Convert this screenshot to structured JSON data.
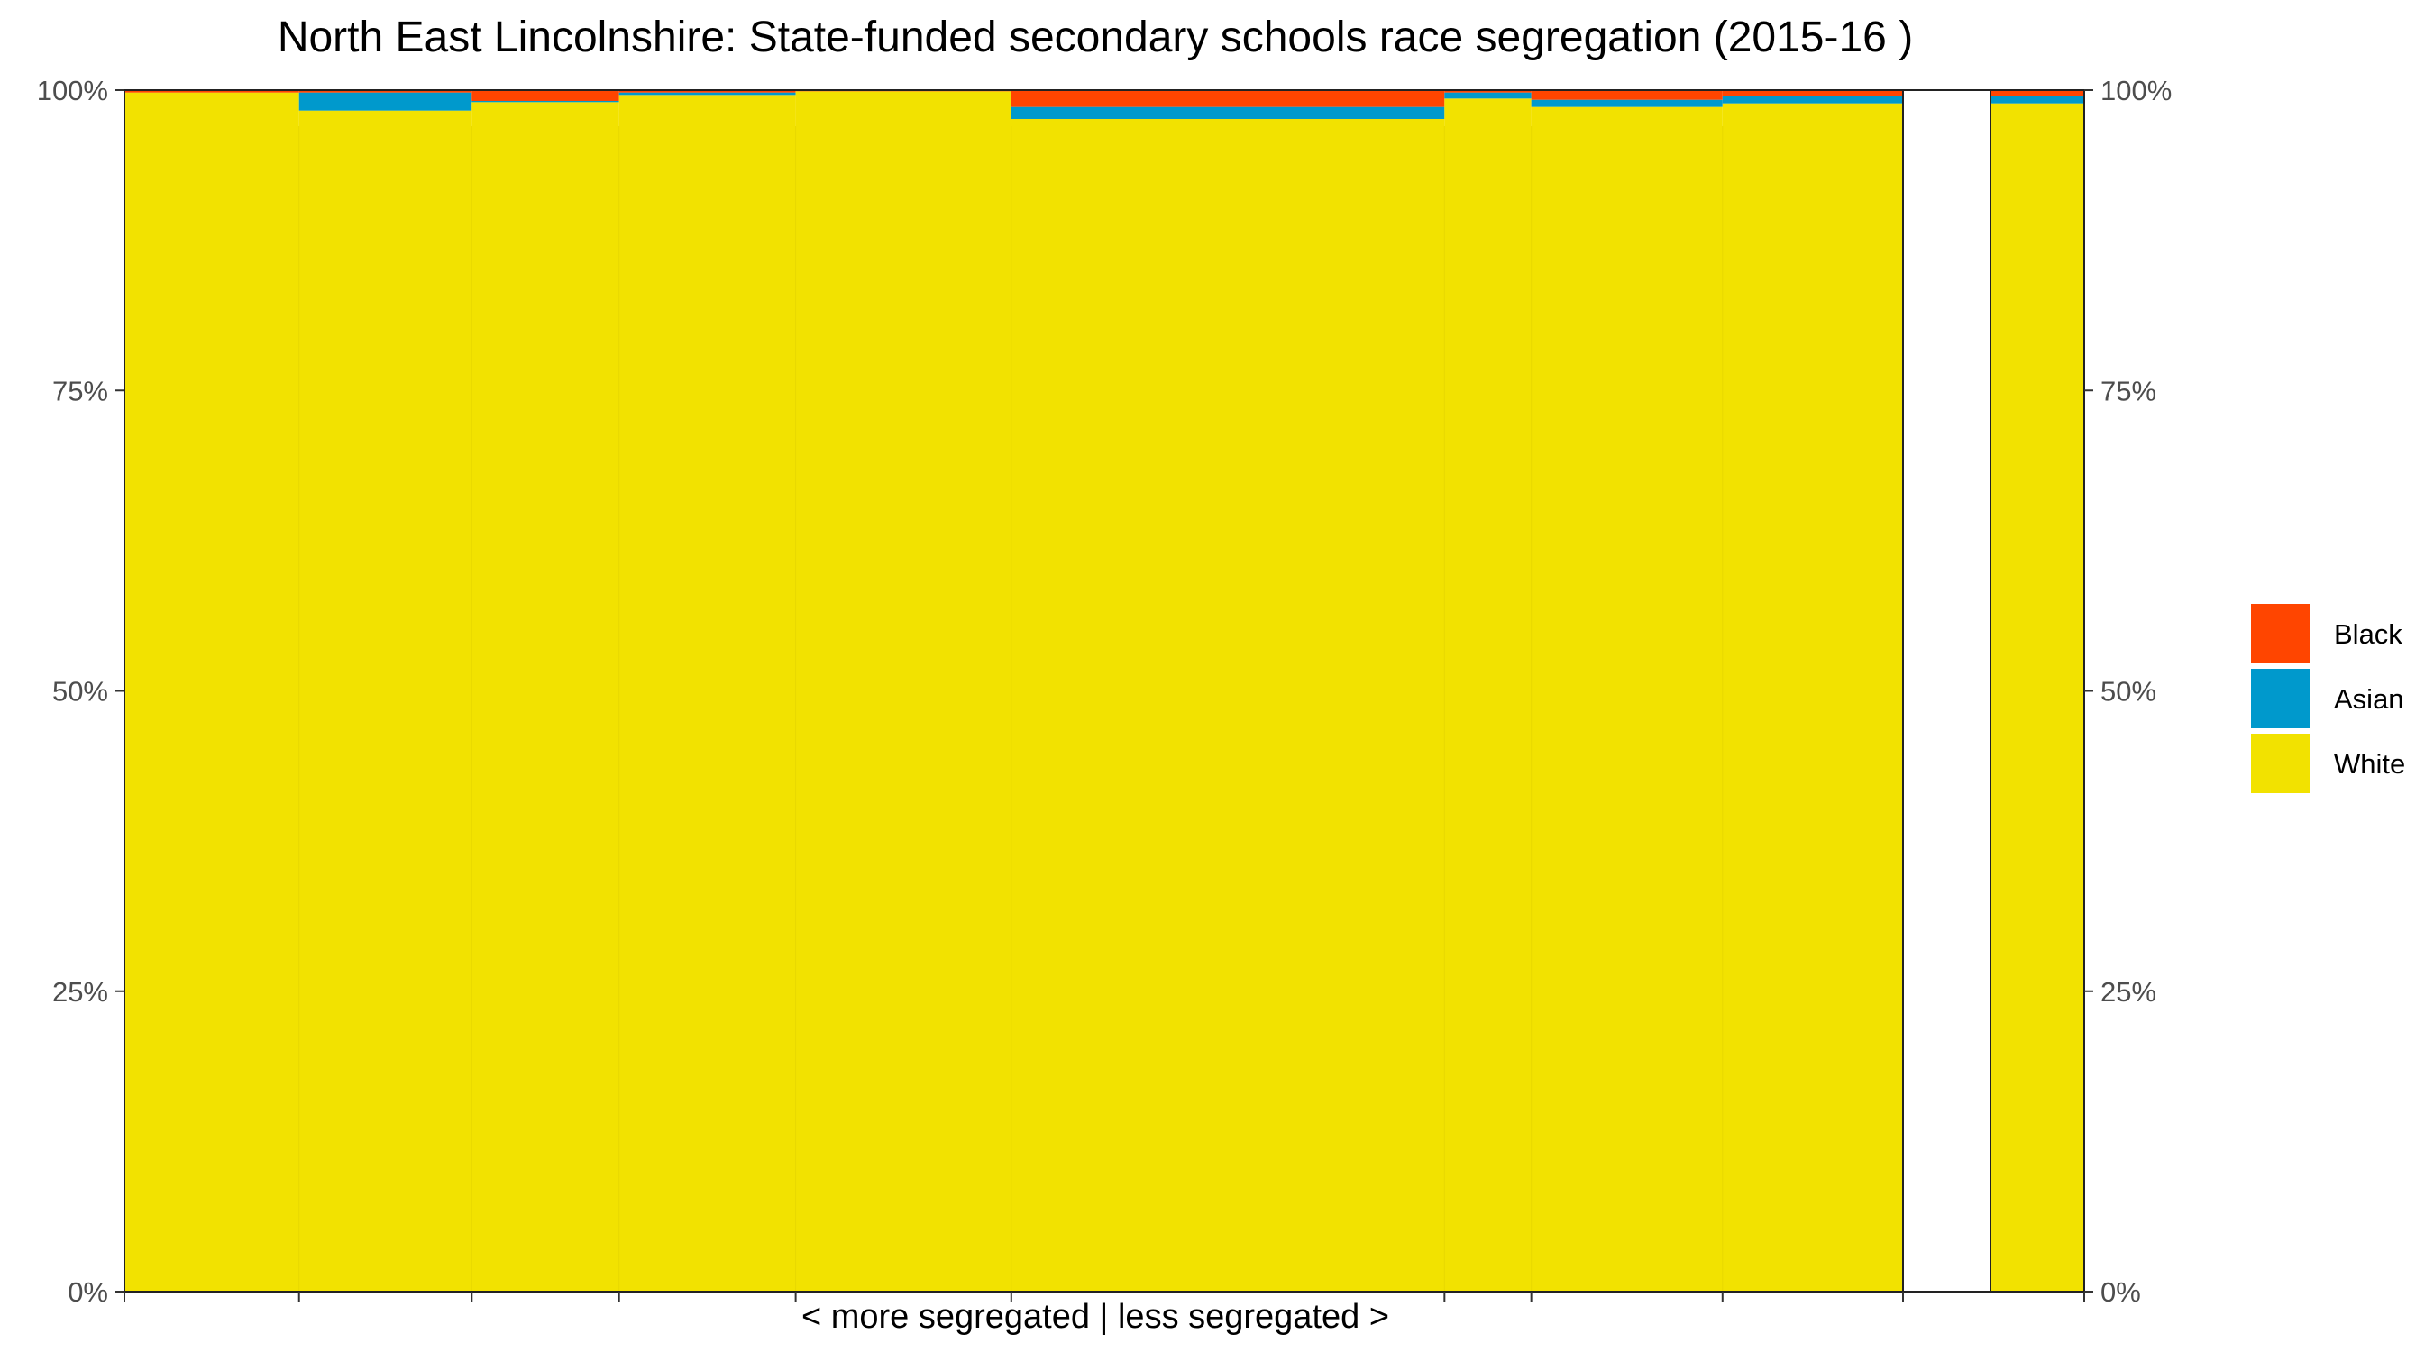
{
  "chart_data": {
    "type": "bar",
    "title": "North East Lincolnshire: State-funded secondary schools race segregation (2015-16 )",
    "xlabel": "< more segregated | less segregated >",
    "ylabel": "",
    "ylim": [
      0,
      100
    ],
    "yticks": [
      "0%",
      "25%",
      "50%",
      "75%",
      "100%"
    ],
    "legend_position": "right",
    "legend": [
      {
        "name": "Black",
        "color": "#FF4500"
      },
      {
        "name": "Asian",
        "color": "#0099CC"
      },
      {
        "name": "White",
        "color": "#F2E200"
      }
    ],
    "schools": [
      {
        "share": 8.95,
        "white": 99.8,
        "asian": 0.0,
        "black": 0.2
      },
      {
        "share": 8.85,
        "white": 98.3,
        "asian": 1.5,
        "black": 0.2
      },
      {
        "share": 7.55,
        "white": 99.0,
        "asian": 0.1,
        "black": 0.9
      },
      {
        "share": 9.05,
        "white": 99.6,
        "asian": 0.2,
        "black": 0.2
      },
      {
        "share": 11.05,
        "white": 99.9,
        "asian": 0.0,
        "black": 0.1
      },
      {
        "share": 22.2,
        "white": 97.6,
        "asian": 1.0,
        "black": 1.4
      },
      {
        "share": 4.45,
        "white": 99.3,
        "asian": 0.5,
        "black": 0.2
      },
      {
        "share": 9.8,
        "white": 98.6,
        "asian": 0.6,
        "black": 0.8
      },
      {
        "share": 9.25,
        "white": 98.9,
        "asian": 0.6,
        "black": 0.5
      }
    ],
    "overall": {
      "white": 98.9,
      "asian": 0.6,
      "black": 0.5
    }
  }
}
